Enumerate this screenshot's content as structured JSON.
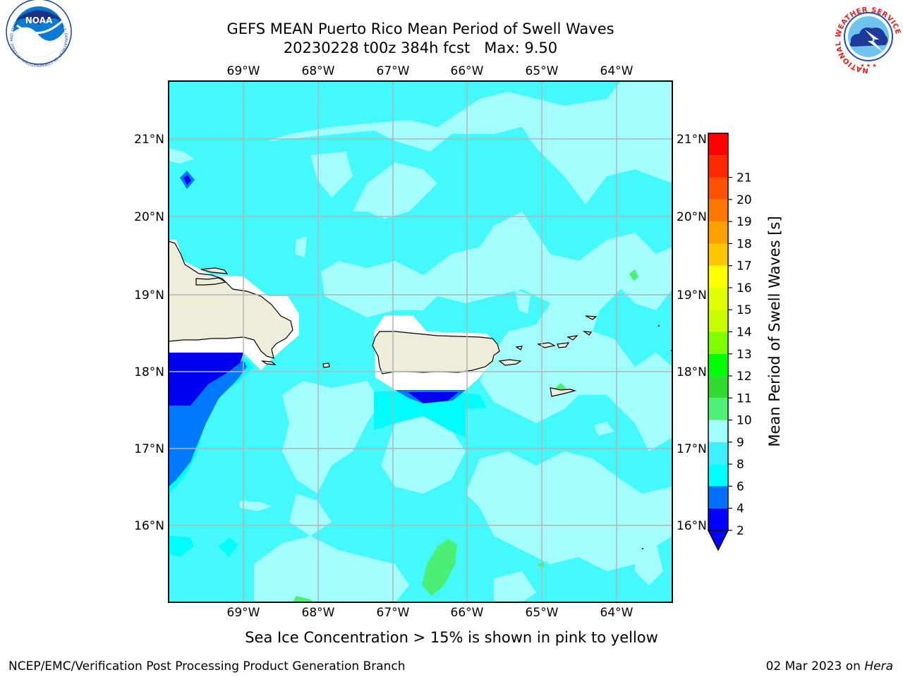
{
  "title": {
    "line1": "GEFS MEAN Puerto Rico Mean Period of Swell Waves",
    "line2": "20230228 t00z 384h fcst   Max: 9.50"
  },
  "map": {
    "lon_labels": [
      "69°W",
      "68°W",
      "67°W",
      "66°W",
      "65°W",
      "64°W"
    ],
    "lat_labels": [
      "21°N",
      "20°N",
      "19°N",
      "18°N",
      "17°N",
      "16°N"
    ],
    "lon_range": [
      -70.0,
      -63.25
    ],
    "lat_range": [
      15.0,
      21.75
    ],
    "grid": true,
    "field": "Mean Period of Swell Waves",
    "max_value": 9.5
  },
  "colorbar": {
    "label": "Mean Period of Swell Waves [s]",
    "ticks": [
      "2",
      "4",
      "6",
      "8",
      "9",
      "10",
      "11",
      "12",
      "13",
      "14",
      "15",
      "16",
      "17",
      "18",
      "19",
      "20",
      "21"
    ],
    "colors": [
      "#0000ff",
      "#0070ff",
      "#00ffff",
      "#40f0ff",
      "#a0ffff",
      "#50f078",
      "#30dc30",
      "#00ff00",
      "#80ff00",
      "#c8ff00",
      "#e0ff00",
      "#ffff00",
      "#ffc800",
      "#ffa000",
      "#ff7800",
      "#ff5000",
      "#ff2800",
      "#ff0000"
    ],
    "under_color": "#0000ff"
  },
  "palette": {
    "land": "#eeedd9",
    "ocean_base": "#44f9fc",
    "ocean_light": "#a4fdfd",
    "ocean_mid": "#00fcfc",
    "deep_blue": "#0000f0",
    "mid_blue": "#0078ff",
    "green": "#4cef76",
    "grid": "#b4b4b4"
  },
  "footer": {
    "note": "Sea Ice Concentration > 15% is shown in pink to yellow",
    "org": "NCEP/EMC/Verification Post Processing Product Generation Branch",
    "date": "02 Mar 2023 on ",
    "host": "Hera"
  },
  "logos": {
    "noaa_text": "NOAA",
    "noaa_ring": "NATIONAL OCEANIC AND ATMOSPHERIC ADMINISTRATION · U.S. DEPARTMENT OF COMMERCE",
    "nws_ring": "NATIONAL WEATHER SERVICE"
  }
}
